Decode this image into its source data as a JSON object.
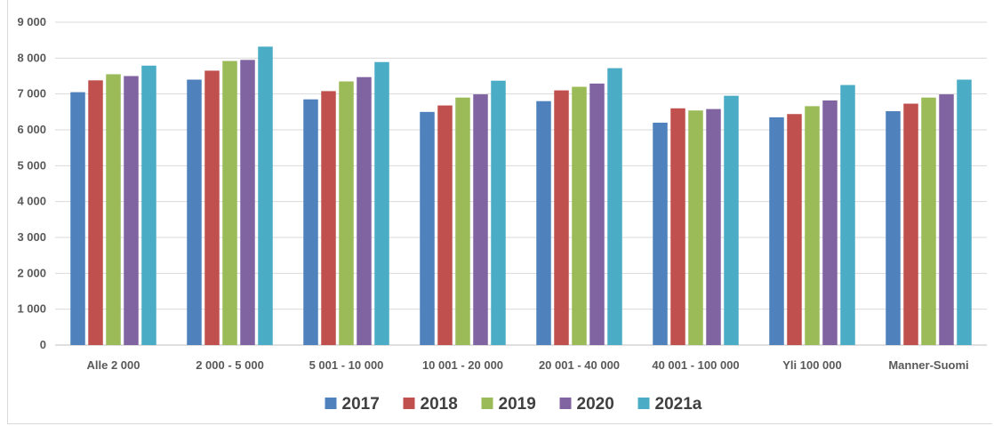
{
  "chart_data": {
    "type": "bar",
    "categories": [
      "Alle 2 000",
      "2 000 - 5 000",
      "5 001 - 10 000",
      "10 001 - 20 000",
      "20 001 - 40 000",
      "40 001 - 100 000",
      "Yli 100 000",
      "Manner-Suomi"
    ],
    "series": [
      {
        "name": "2017",
        "color": "#4f81bd",
        "values": [
          7050,
          7400,
          6850,
          6500,
          6800,
          6200,
          6350,
          6520
        ]
      },
      {
        "name": "2018",
        "color": "#c0504d",
        "values": [
          7380,
          7650,
          7080,
          6680,
          7100,
          6600,
          6440,
          6730
        ]
      },
      {
        "name": "2019",
        "color": "#9bbb59",
        "values": [
          7550,
          7920,
          7350,
          6900,
          7200,
          6540,
          6660,
          6900
        ]
      },
      {
        "name": "2020",
        "color": "#8064a2",
        "values": [
          7500,
          7950,
          7470,
          6990,
          7290,
          6580,
          6820,
          6990
        ]
      },
      {
        "name": "2021a",
        "color": "#4bacc6",
        "values": [
          7790,
          8320,
          7890,
          7370,
          7720,
          6950,
          7250,
          7400
        ]
      }
    ],
    "yticks": [
      "0",
      "1 000",
      "2 000",
      "3 000",
      "4 000",
      "5 000",
      "6 000",
      "7 000",
      "8 000",
      "9 000"
    ],
    "ylim": [
      0,
      9000
    ],
    "grid": true,
    "legend_position": "bottom"
  }
}
